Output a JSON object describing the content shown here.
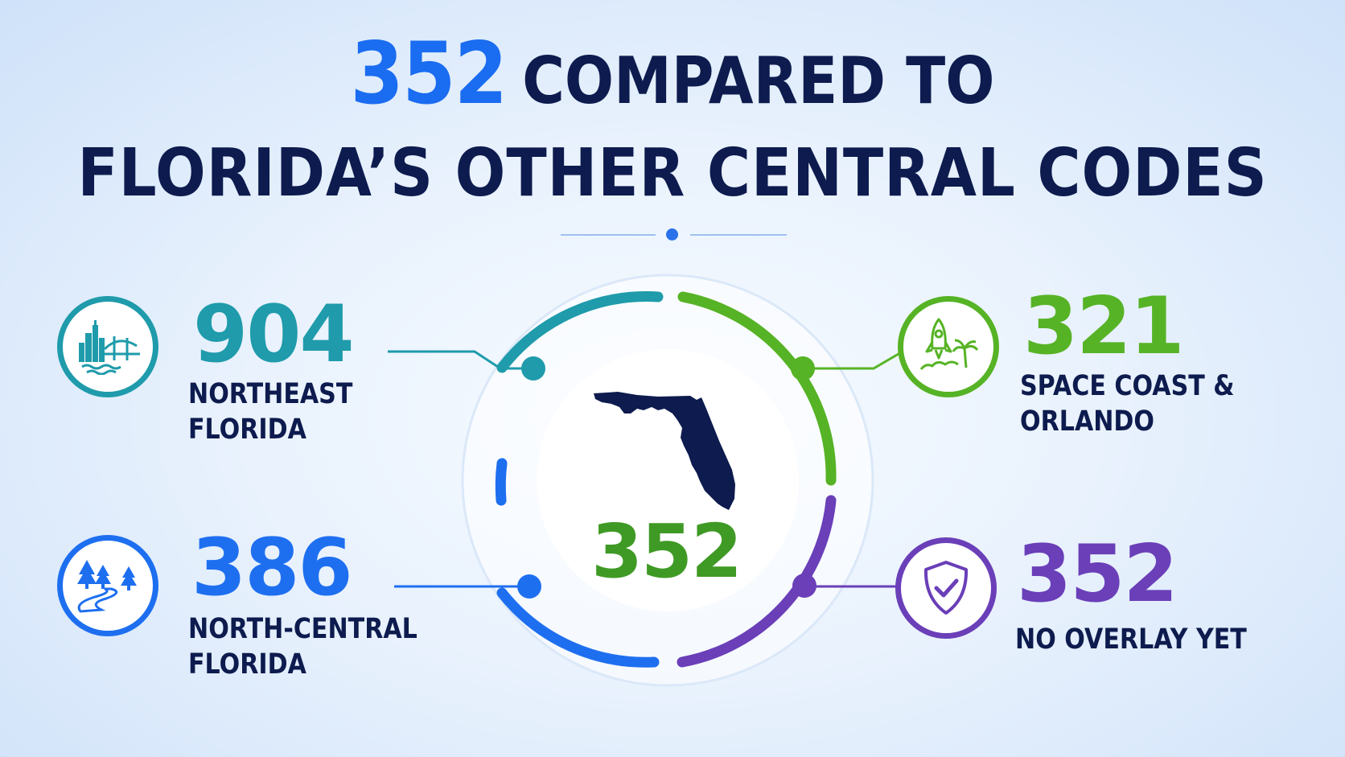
{
  "title": {
    "highlight_code": "352",
    "line1_rest": "COMPARED TO",
    "line2": "FLORIDA’S OTHER CENTRAL CODES"
  },
  "colors": {
    "title_dark": "#0d1b4e",
    "accent_blue": "#1a6cf0",
    "teal": "#1f9bab",
    "green": "#56b325",
    "blue": "#1e6ff0",
    "purple": "#6a3fb8"
  },
  "center": {
    "code": "352",
    "icon": "florida-map-icon"
  },
  "areas": [
    {
      "code": "904",
      "label_lines": [
        "NORTHEAST FLORIDA"
      ],
      "icon": "city-bridge-icon",
      "color": "#1f9bab"
    },
    {
      "code": "321",
      "label_lines": [
        "SPACE COAST &",
        "ORLANDO"
      ],
      "icon": "rocket-palm-icon",
      "color": "#56b325"
    },
    {
      "code": "386",
      "label_lines": [
        "NORTH-CENTRAL",
        "FLORIDA"
      ],
      "icon": "trees-river-icon",
      "color": "#1e6ff0"
    },
    {
      "code": "352",
      "label_lines": [
        "NO OVERLAY YET"
      ],
      "icon": "shield-check-icon",
      "color": "#6a3fb8"
    }
  ]
}
